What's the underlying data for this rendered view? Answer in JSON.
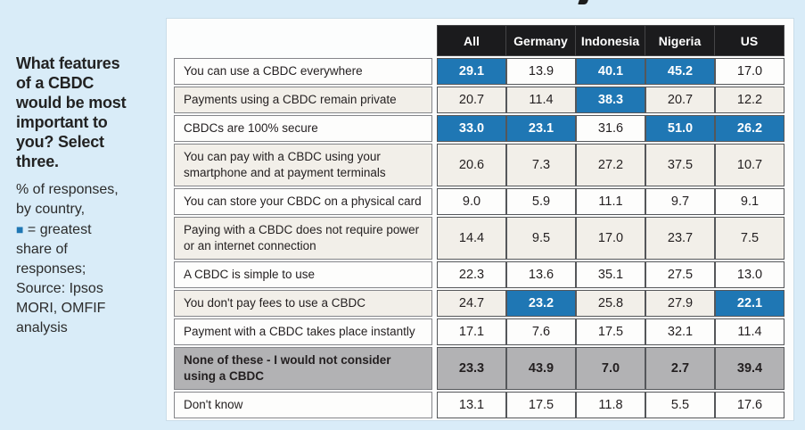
{
  "sidebar": {
    "title": "What features\nof a CBDC\nwould be most\nimportant to\nyou? Select\nthree.",
    "caption_before": "% of responses,\nby country,\n",
    "caption_marker": "■",
    "caption_after": " = greatest\nshare of\nresponses;\nSource: Ipsos\nMORI, OMFIF\nanalysis"
  },
  "colors": {
    "page_background": "#d9ecf8",
    "card_background": "#fcfdfd",
    "header_background": "#1b1b1d",
    "highlight_blue": "#1f77b4",
    "row_beige": "#f2efe9",
    "row_gray": "#b2b2b4",
    "text_dark": "#231f20"
  },
  "chart_data": {
    "type": "table",
    "title": "What features of a CBDC would be most important to you? Select three.",
    "note": "% of responses, by country, blue cell = greatest share of responses",
    "source": "Ipsos MORI, OMFIF analysis",
    "columns": [
      "All",
      "Germany",
      "Indonesia",
      "Nigeria",
      "US"
    ],
    "rows": [
      {
        "label": "You can use a CBDC everywhere",
        "values": [
          "29.1",
          "13.9",
          "40.1",
          "45.2",
          "17.0"
        ],
        "highlight": [
          true,
          false,
          true,
          true,
          false
        ],
        "variant": "light"
      },
      {
        "label": "Payments using a CBDC remain private",
        "values": [
          "20.7",
          "11.4",
          "38.3",
          "20.7",
          "12.2"
        ],
        "highlight": [
          false,
          false,
          true,
          false,
          false
        ],
        "variant": "beige"
      },
      {
        "label": "CBDCs are 100% secure",
        "values": [
          "33.0",
          "23.1",
          "31.6",
          "51.0",
          "26.2"
        ],
        "highlight": [
          true,
          true,
          false,
          true,
          true
        ],
        "variant": "light"
      },
      {
        "label": "You can pay with a CBDC using your smartphone and at payment terminals",
        "values": [
          "20.6",
          "7.3",
          "27.2",
          "37.5",
          "10.7"
        ],
        "highlight": [
          false,
          false,
          false,
          false,
          false
        ],
        "variant": "beige"
      },
      {
        "label": "You can store your CBDC on a physical card",
        "values": [
          "9.0",
          "5.9",
          "11.1",
          "9.7",
          "9.1"
        ],
        "highlight": [
          false,
          false,
          false,
          false,
          false
        ],
        "variant": "light"
      },
      {
        "label": "Paying with a CBDC does not require power or an internet connection",
        "values": [
          "14.4",
          "9.5",
          "17.0",
          "23.7",
          "7.5"
        ],
        "highlight": [
          false,
          false,
          false,
          false,
          false
        ],
        "variant": "beige"
      },
      {
        "label": "A CBDC is simple to use",
        "values": [
          "22.3",
          "13.6",
          "35.1",
          "27.5",
          "13.0"
        ],
        "highlight": [
          false,
          false,
          false,
          false,
          false
        ],
        "variant": "light"
      },
      {
        "label": "You don't pay fees to use a CBDC",
        "values": [
          "24.7",
          "23.2",
          "25.8",
          "27.9",
          "22.1"
        ],
        "highlight": [
          false,
          true,
          false,
          false,
          true
        ],
        "variant": "beige"
      },
      {
        "label": "Payment with a CBDC takes place instantly",
        "values": [
          "17.1",
          "7.6",
          "17.5",
          "32.1",
          "11.4"
        ],
        "highlight": [
          false,
          false,
          false,
          false,
          false
        ],
        "variant": "light"
      },
      {
        "label": "None of these - I would not consider using a CBDC",
        "values": [
          "23.3",
          "43.9",
          "7.0",
          "2.7",
          "39.4"
        ],
        "highlight": [
          false,
          false,
          false,
          false,
          false
        ],
        "variant": "gray"
      },
      {
        "label": "Don't know",
        "values": [
          "13.1",
          "17.5",
          "11.8",
          "5.5",
          "17.6"
        ],
        "highlight": [
          false,
          false,
          false,
          false,
          false
        ],
        "variant": "light"
      }
    ]
  }
}
